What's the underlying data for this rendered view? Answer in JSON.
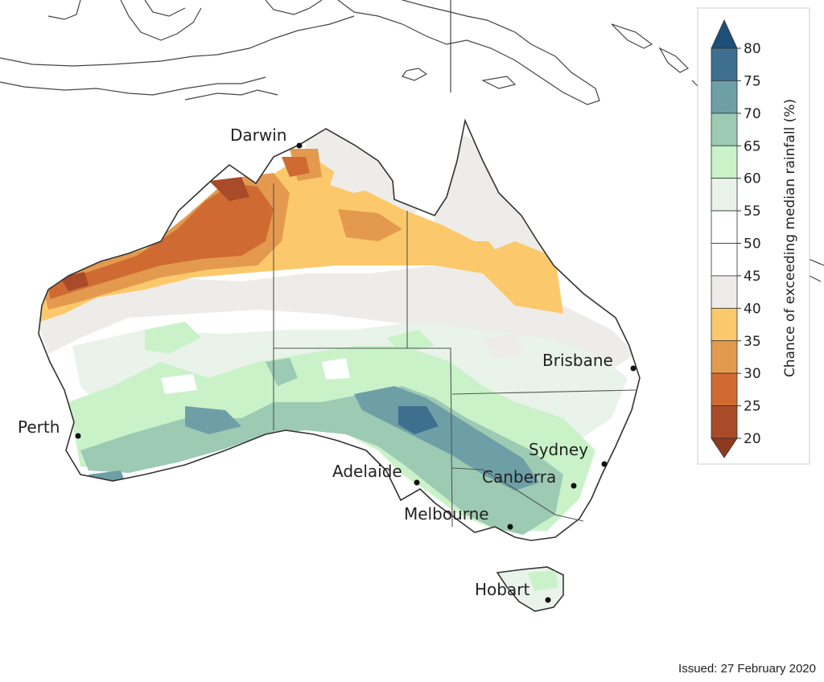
{
  "map": {
    "region": "Australia",
    "cities": [
      {
        "name": "Darwin"
      },
      {
        "name": "Brisbane"
      },
      {
        "name": "Perth"
      },
      {
        "name": "Sydney"
      },
      {
        "name": "Adelaide"
      },
      {
        "name": "Canberra"
      },
      {
        "name": "Melbourne"
      },
      {
        "name": "Hobart"
      }
    ]
  },
  "legend": {
    "title": "Chance of exceeding median rainfall (%)",
    "ticks": [
      "80",
      "75",
      "70",
      "65",
      "60",
      "55",
      "50",
      "45",
      "40",
      "35",
      "30",
      "25",
      "20"
    ],
    "bins": [
      {
        "range": "75-80",
        "color": "#3f6f8f"
      },
      {
        "range": "70-75",
        "color": "#6e9fa6"
      },
      {
        "range": "65-70",
        "color": "#9ccab3"
      },
      {
        "range": "60-65",
        "color": "#c9f2c9"
      },
      {
        "range": "55-60",
        "color": "#e9f3e9"
      },
      {
        "range": "50-55",
        "color": "#ffffff"
      },
      {
        "range": "45-50",
        "color": "#ffffff"
      },
      {
        "range": "40-45",
        "color": "#eeece9"
      },
      {
        "range": "35-40",
        "color": "#fbc96b"
      },
      {
        "range": "30-35",
        "color": "#e49a4e"
      },
      {
        "range": "25-30",
        "color": "#cf6b32"
      },
      {
        "range": "20-25",
        "color": "#a94a28"
      }
    ],
    "over_color": "#1f4e7a",
    "under_color": "#8e3a1f"
  },
  "issued": "Issued: 27 February 2020"
}
